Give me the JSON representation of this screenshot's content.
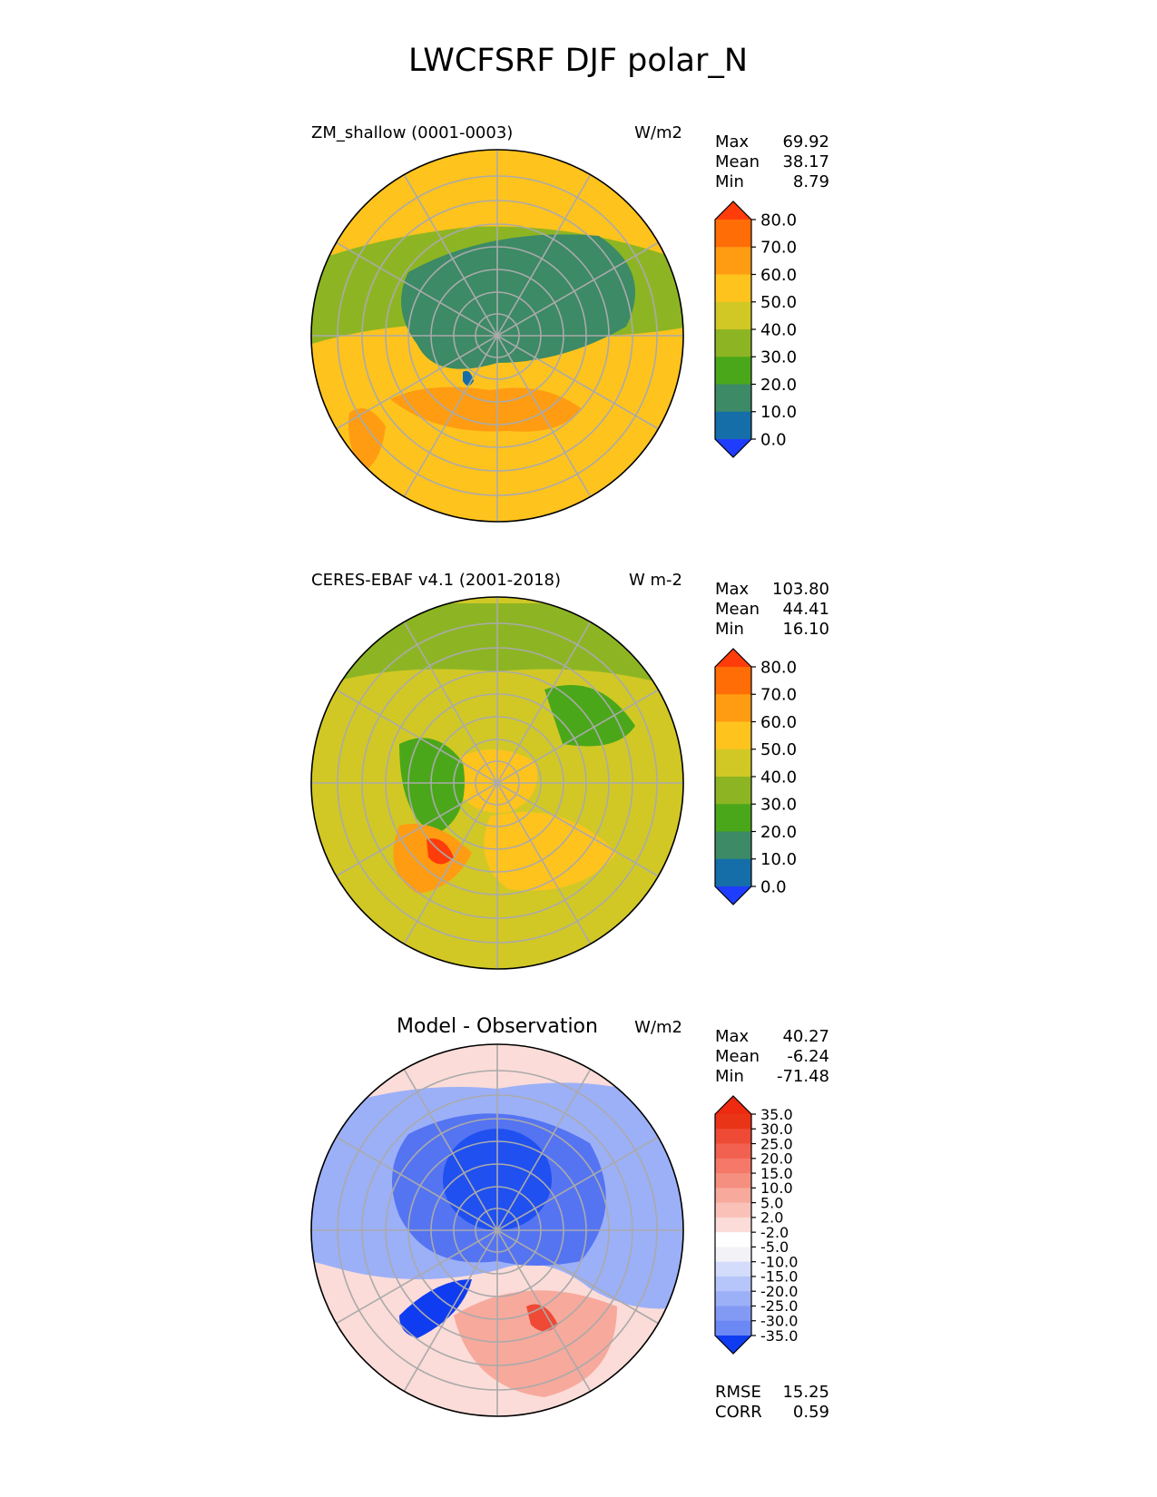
{
  "title": "LWCFSRF DJF polar_N",
  "colors": {
    "test_ref": [
      "#1f3dff",
      "#156ea8",
      "#3c8a66",
      "#4aa71a",
      "#8db523",
      "#d1c826",
      "#ffc31e",
      "#ff9c12",
      "#ff6d07",
      "#ff3c0a"
    ],
    "diff": [
      "#0f3cf0",
      "#2050f0",
      "#3b63f0",
      "#5574f2",
      "#6c88f4",
      "#839af5",
      "#9cb0f8",
      "#b6c6fa",
      "#d3dcfb",
      "#f2f2f7",
      "#ffffff",
      "#fbdcd8",
      "#f9c1b8",
      "#f7a99c",
      "#f58f80",
      "#f57868",
      "#f2604f",
      "#ef4a35",
      "#ea3418",
      "#ee2a10"
    ]
  },
  "chart_data": [
    {
      "type": "polar-contour-map",
      "panel": "test",
      "title": "ZM_shallow (0001-0003)",
      "units": "W/m2",
      "stats": [
        {
          "label": "Max",
          "value": "69.92"
        },
        {
          "label": "Mean",
          "value": "38.17"
        },
        {
          "label": "Min",
          "value": "8.79"
        }
      ],
      "colorbar": {
        "levels": [
          0,
          10,
          20,
          30,
          40,
          50,
          60,
          70,
          80
        ],
        "tick_labels": [
          "0.0",
          "10.0",
          "20.0",
          "30.0",
          "40.0",
          "50.0",
          "60.0",
          "70.0",
          "80.0"
        ],
        "extend": "both"
      }
    },
    {
      "type": "polar-contour-map",
      "panel": "reference",
      "title": "CERES-EBAF v4.1 (2001-2018)",
      "units": "W m-2",
      "stats": [
        {
          "label": "Max",
          "value": "103.80"
        },
        {
          "label": "Mean",
          "value": "44.41"
        },
        {
          "label": "Min",
          "value": "16.10"
        }
      ],
      "colorbar": {
        "levels": [
          0,
          10,
          20,
          30,
          40,
          50,
          60,
          70,
          80
        ],
        "tick_labels": [
          "0.0",
          "10.0",
          "20.0",
          "30.0",
          "40.0",
          "50.0",
          "60.0",
          "70.0",
          "80.0"
        ],
        "extend": "both"
      }
    },
    {
      "type": "polar-contour-map",
      "panel": "difference",
      "title": "Model - Observation",
      "units": "W/m2",
      "stats": [
        {
          "label": "Max",
          "value": "40.27"
        },
        {
          "label": "Mean",
          "value": "-6.24"
        },
        {
          "label": "Min",
          "value": "-71.48"
        }
      ],
      "metrics": [
        {
          "label": "RMSE",
          "value": "15.25"
        },
        {
          "label": "CORR",
          "value": "0.59"
        }
      ],
      "colorbar": {
        "levels": [
          -35,
          -30,
          -25,
          -20,
          -15,
          -10,
          -5,
          -2,
          2,
          5,
          10,
          15,
          20,
          25,
          30,
          35
        ],
        "tick_labels": [
          "-35.0",
          "-30.0",
          "-25.0",
          "-20.0",
          "-15.0",
          "-10.0",
          "-5.0",
          "-2.0",
          "2.0",
          "5.0",
          "10.0",
          "15.0",
          "20.0",
          "25.0",
          "30.0",
          "35.0"
        ],
        "extend": "both"
      }
    }
  ]
}
